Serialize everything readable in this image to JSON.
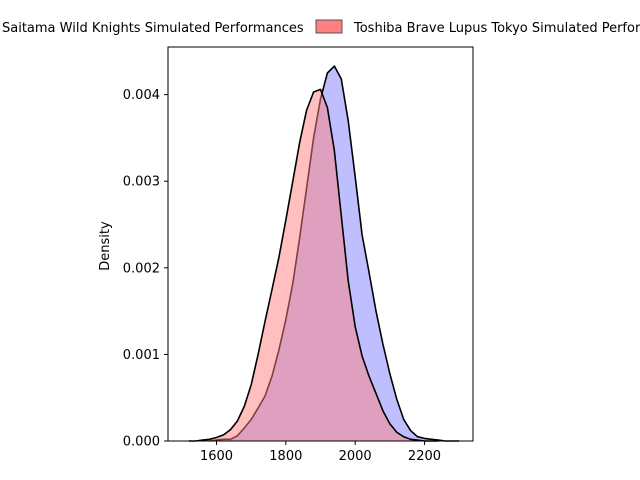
{
  "chart_data": {
    "type": "area",
    "subtype": "kde-density",
    "title": "",
    "xlabel": "",
    "ylabel": "Density",
    "xlim": [
      1460,
      2340
    ],
    "ylim": [
      0,
      0.00455
    ],
    "x_ticks": [
      1600,
      1800,
      2000,
      2200
    ],
    "x_tick_labels": [
      "1600",
      "1800",
      "2000",
      "2200"
    ],
    "y_ticks": [
      0,
      0.001,
      0.002,
      0.003,
      0.004
    ],
    "y_tick_labels": [
      "0.000",
      "0.001",
      "0.002",
      "0.003",
      "0.004"
    ],
    "grid": false,
    "legend": {
      "placement": "top-center-above",
      "entries": [
        {
          "label": "Saitama Wild Knights Simulated Performances",
          "color": "#8080ff"
        },
        {
          "label": "Toshiba Brave Lupus Tokyo Simulated Performances",
          "color": "#ff8080"
        }
      ]
    },
    "series": [
      {
        "name": "Saitama Wild Knights Simulated Performances",
        "fill": "#8080ff",
        "fill_opacity": 0.5,
        "line": "#000000",
        "points": [
          [
            1580,
            0.0
          ],
          [
            1600,
            1e-05
          ],
          [
            1620,
            2e-05
          ],
          [
            1640,
            2e-05
          ],
          [
            1660,
            6e-05
          ],
          [
            1680,
            0.00015
          ],
          [
            1700,
            0.00025
          ],
          [
            1720,
            0.00038
          ],
          [
            1740,
            0.00052
          ],
          [
            1760,
            0.00075
          ],
          [
            1780,
            0.00105
          ],
          [
            1800,
            0.0014
          ],
          [
            1820,
            0.00182
          ],
          [
            1840,
            0.00235
          ],
          [
            1860,
            0.00292
          ],
          [
            1880,
            0.0035
          ],
          [
            1900,
            0.00395
          ],
          [
            1920,
            0.00425
          ],
          [
            1940,
            0.00433
          ],
          [
            1960,
            0.00418
          ],
          [
            1980,
            0.0037
          ],
          [
            2000,
            0.00305
          ],
          [
            2020,
            0.00238
          ],
          [
            2040,
            0.00195
          ],
          [
            2060,
            0.0015
          ],
          [
            2080,
            0.00112
          ],
          [
            2100,
            0.00078
          ],
          [
            2120,
            0.00048
          ],
          [
            2140,
            0.00025
          ],
          [
            2160,
            0.00012
          ],
          [
            2180,
            5e-05
          ],
          [
            2200,
            3e-05
          ],
          [
            2220,
            2e-05
          ],
          [
            2240,
            1e-05
          ],
          [
            2260,
            0.0
          ],
          [
            2280,
            0.0
          ],
          [
            2300,
            0.0
          ]
        ]
      },
      {
        "name": "Toshiba Brave Lupus Tokyo Simulated Performances",
        "fill": "#ff8080",
        "fill_opacity": 0.5,
        "line": "#000000",
        "points": [
          [
            1520,
            0.0
          ],
          [
            1540,
            0.0
          ],
          [
            1560,
            1e-05
          ],
          [
            1580,
            2e-05
          ],
          [
            1600,
            4e-05
          ],
          [
            1620,
            7e-05
          ],
          [
            1640,
            0.00013
          ],
          [
            1660,
            0.00023
          ],
          [
            1680,
            0.0004
          ],
          [
            1700,
            0.00065
          ],
          [
            1720,
            0.001
          ],
          [
            1740,
            0.00138
          ],
          [
            1760,
            0.00175
          ],
          [
            1780,
            0.00212
          ],
          [
            1800,
            0.00255
          ],
          [
            1820,
            0.003
          ],
          [
            1840,
            0.00345
          ],
          [
            1860,
            0.00382
          ],
          [
            1880,
            0.00403
          ],
          [
            1900,
            0.00406
          ],
          [
            1920,
            0.00385
          ],
          [
            1940,
            0.00335
          ],
          [
            1960,
            0.0026
          ],
          [
            1980,
            0.00185
          ],
          [
            2000,
            0.00132
          ],
          [
            2020,
            0.00098
          ],
          [
            2040,
            0.00075
          ],
          [
            2060,
            0.00055
          ],
          [
            2080,
            0.00035
          ],
          [
            2100,
            0.0002
          ],
          [
            2120,
            0.0001
          ],
          [
            2140,
            5e-05
          ],
          [
            2160,
            2e-05
          ],
          [
            2180,
            1e-05
          ],
          [
            2200,
            0.0
          ],
          [
            2240,
            0.0
          ]
        ]
      }
    ]
  }
}
